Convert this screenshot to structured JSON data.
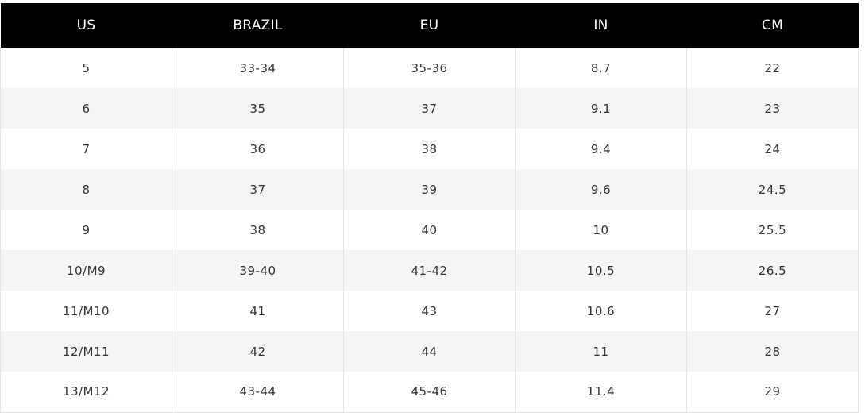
{
  "size_chart": {
    "headers": [
      "US",
      "BRAZIL",
      "EU",
      "IN",
      "CM"
    ],
    "rows": [
      [
        "5",
        "33-34",
        "35-36",
        "8.7",
        "22"
      ],
      [
        "6",
        "35",
        "37",
        "9.1",
        "23"
      ],
      [
        "7",
        "36",
        "38",
        "9.4",
        "24"
      ],
      [
        "8",
        "37",
        "39",
        "9.6",
        "24.5"
      ],
      [
        "9",
        "38",
        "40",
        "10",
        "25.5"
      ],
      [
        "10/M9",
        "39-40",
        "41-42",
        "10.5",
        "26.5"
      ],
      [
        "11/M10",
        "41",
        "43",
        "10.6",
        "27"
      ],
      [
        "12/M11",
        "42",
        "44",
        "11",
        "28"
      ],
      [
        "13/M12",
        "43-44",
        "45-46",
        "11.4",
        "29"
      ]
    ]
  },
  "colors": {
    "header_bg": "#000000",
    "header_text": "#ffffff",
    "row_alt_bg": "#f5f5f5",
    "cell_text": "#333333"
  }
}
